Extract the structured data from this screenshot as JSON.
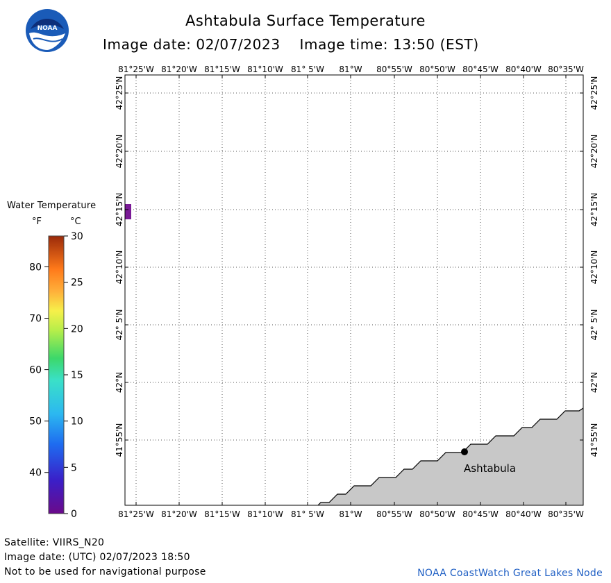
{
  "header": {
    "title": "Ashtabula Surface Temperature",
    "image_date": "Image date: 02/07/2023",
    "image_time": "Image time: 13:50 (EST)"
  },
  "logo": {
    "text": "NOAA",
    "icon": "noaa-logo"
  },
  "map": {
    "lon_labels": [
      "81°25'W",
      "81°20'W",
      "81°15'W",
      "81°10'W",
      "81° 5'W",
      "81°W",
      "80°55'W",
      "80°50'W",
      "80°45'W",
      "80°40'W",
      "80°35'W"
    ],
    "lat_labels": [
      "42°25'N",
      "42°20'N",
      "42°15'N",
      "42°10'N",
      "42° 5'N",
      "42°N",
      "41°55'N"
    ],
    "land_color": "#c8c8c8",
    "water_color": "#ffffff",
    "city": {
      "name": "Ashtabula"
    },
    "data_pixel_color": "#7a1a96"
  },
  "legend": {
    "title": "Water Temperature",
    "unit_f": "°F",
    "unit_c": "°C",
    "f_ticks": [
      "40",
      "50",
      "60",
      "70",
      "80"
    ],
    "c_ticks": [
      "0",
      "5",
      "10",
      "15",
      "20",
      "25",
      "30"
    ]
  },
  "footer": {
    "satellite": "Satellite: VIIRS_N20",
    "utc_date": "Image date: (UTC) 02/07/2023  18:50",
    "disclaimer": "Not to be used for navigational purpose",
    "credit": "NOAA CoastWatch Great Lakes Node"
  }
}
